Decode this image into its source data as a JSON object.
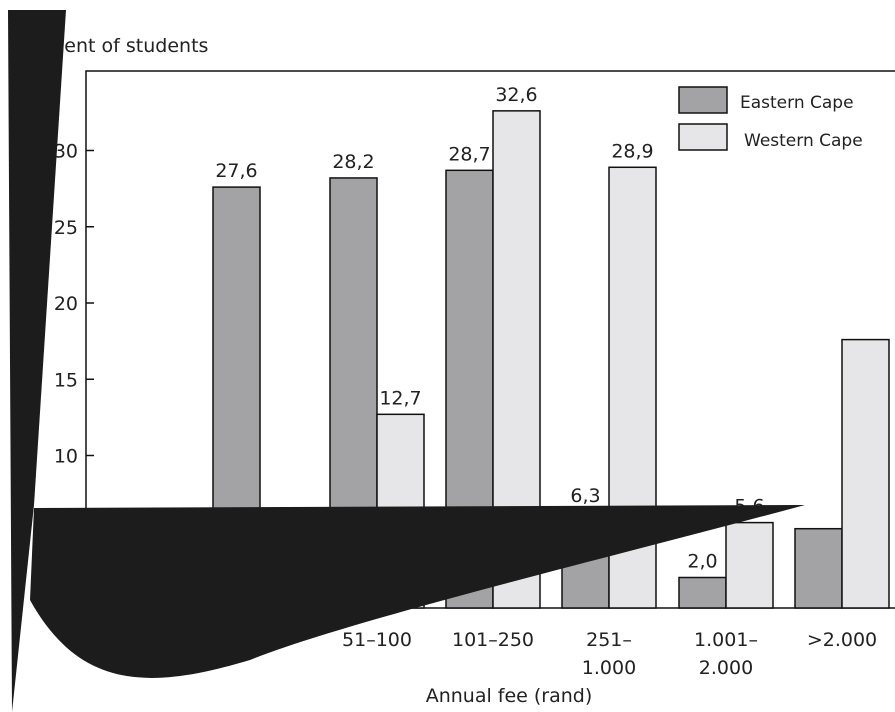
{
  "chart_data": {
    "type": "bar",
    "ylabel": "Percent of students",
    "xlabel": "Annual fee (rand)",
    "categories": [
      "",
      "51–100",
      "101–250",
      "251–\n1.000",
      "1.001–\n2.000",
      ">2.000"
    ],
    "series": [
      {
        "name": "Eastern Cape",
        "color": "#a3a3a6",
        "values": [
          27.6,
          28.2,
          28.7,
          6.3,
          2.0,
          5.2
        ]
      },
      {
        "name": "Western Cape",
        "color": "#e6e6e8",
        "values": [
          null,
          12.7,
          32.6,
          28.9,
          5.6,
          17.6
        ]
      }
    ],
    "data_labels": {
      "Eastern Cape": [
        "27,6",
        "28,2",
        "28,7",
        "6,3",
        "2,0",
        null
      ],
      "Western Cape": [
        null,
        "12,7",
        "32,6",
        "28,9",
        "5,6",
        null
      ]
    },
    "yticks": [
      10,
      15,
      20,
      25,
      30
    ],
    "ytick_labels": [
      "10",
      "15",
      "20",
      "25",
      "30"
    ],
    "ylim": [
      0,
      35
    ],
    "legend_position": "top-right",
    "grid": false
  },
  "overlay": {
    "shape": "black-wedge-artifact",
    "color": "#1c1c1c"
  }
}
